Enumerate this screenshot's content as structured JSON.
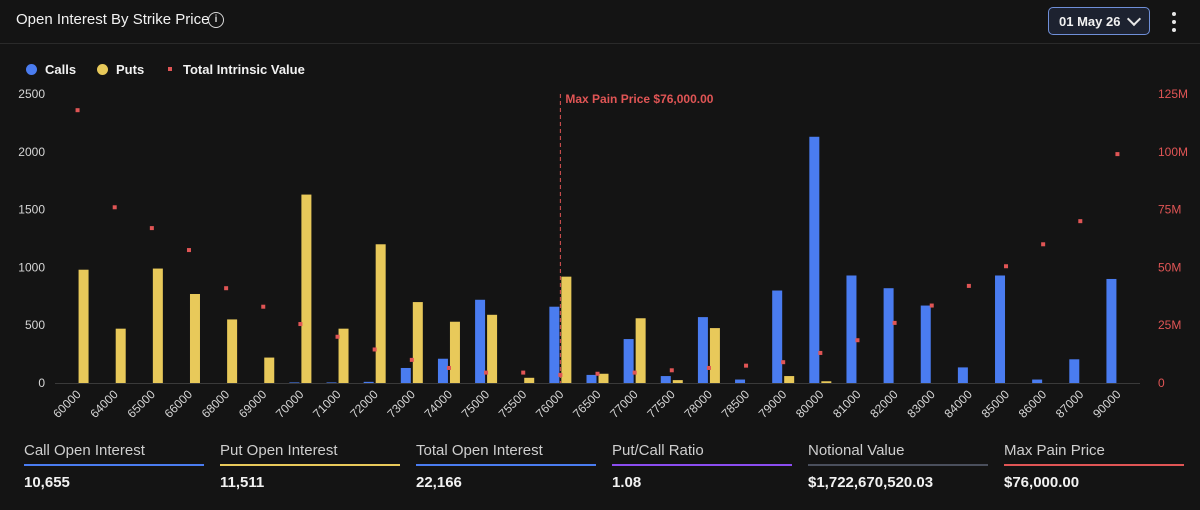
{
  "header": {
    "title": "Open Interest By Strike Price",
    "info_icon": "info-icon",
    "date_label": "01 May 26",
    "more_icon": "more-vertical-icon"
  },
  "legend": [
    {
      "label": "Calls",
      "color": "#4a7cf0",
      "shape": "dot"
    },
    {
      "label": "Puts",
      "color": "#e8c95a",
      "shape": "dot"
    },
    {
      "label": "Total Intrinsic Value",
      "color": "#e05555",
      "shape": "square"
    }
  ],
  "chart_data": {
    "type": "bar",
    "categories": [
      "60000",
      "64000",
      "65000",
      "66000",
      "68000",
      "69000",
      "70000",
      "71000",
      "72000",
      "73000",
      "74000",
      "75000",
      "75500",
      "76000",
      "76500",
      "77000",
      "77500",
      "78000",
      "78500",
      "79000",
      "80000",
      "81000",
      "82000",
      "83000",
      "84000",
      "85000",
      "86000",
      "87000",
      "90000"
    ],
    "series": [
      {
        "name": "Calls",
        "axis": "left",
        "color": "#4a7cf0",
        "values": [
          0,
          0,
          0,
          0,
          0,
          0,
          5,
          5,
          10,
          130,
          210,
          720,
          0,
          660,
          70,
          380,
          60,
          570,
          30,
          800,
          2130,
          930,
          820,
          670,
          135,
          930,
          30,
          205,
          900
        ]
      },
      {
        "name": "Puts",
        "axis": "left",
        "color": "#e8c95a",
        "values": [
          980,
          470,
          990,
          770,
          550,
          220,
          1630,
          470,
          1200,
          700,
          530,
          590,
          45,
          920,
          80,
          560,
          25,
          475,
          0,
          60,
          15,
          0,
          0,
          0,
          0,
          0,
          0,
          0,
          0
        ]
      },
      {
        "name": "Total Intrinsic Value",
        "axis": "right",
        "type": "scatter",
        "color": "#e05555",
        "values": [
          118000000,
          76000000,
          67000000,
          57500000,
          41000000,
          33000000,
          25500000,
          20000000,
          14500000,
          10000000,
          6500000,
          4500000,
          4500000,
          3500000,
          4000000,
          4500000,
          5500000,
          6500000,
          7500000,
          9000000,
          13000000,
          18500000,
          26000000,
          33500000,
          42000000,
          50500000,
          60000000,
          70000000,
          99000000
        ]
      }
    ],
    "ylim": [
      0,
      2500
    ],
    "yticks": [
      "0",
      "500",
      "1000",
      "1500",
      "2000",
      "2500"
    ],
    "y2lim": [
      0,
      125000000
    ],
    "y2ticks": [
      "0",
      "25M",
      "50M",
      "75M",
      "100M",
      "125M"
    ],
    "annotation": {
      "label": "Max Pain Price $76,000.00",
      "category": "76000",
      "color": "#e05555"
    },
    "grid": false
  },
  "stats": [
    {
      "label": "Call Open Interest",
      "value": "10,655",
      "color": "#4a7cf0"
    },
    {
      "label": "Put Open Interest",
      "value": "11,511",
      "color": "#e8c95a"
    },
    {
      "label": "Total Open Interest",
      "value": "22,166",
      "color": "#4a7cf0"
    },
    {
      "label": "Put/Call Ratio",
      "value": "1.08",
      "color": "#8b4df0"
    },
    {
      "label": "Notional Value",
      "value": "$1,722,670,520.03",
      "color": "#4a4f5c"
    },
    {
      "label": "Max Pain Price",
      "value": "$76,000.00",
      "color": "#e05555"
    }
  ]
}
